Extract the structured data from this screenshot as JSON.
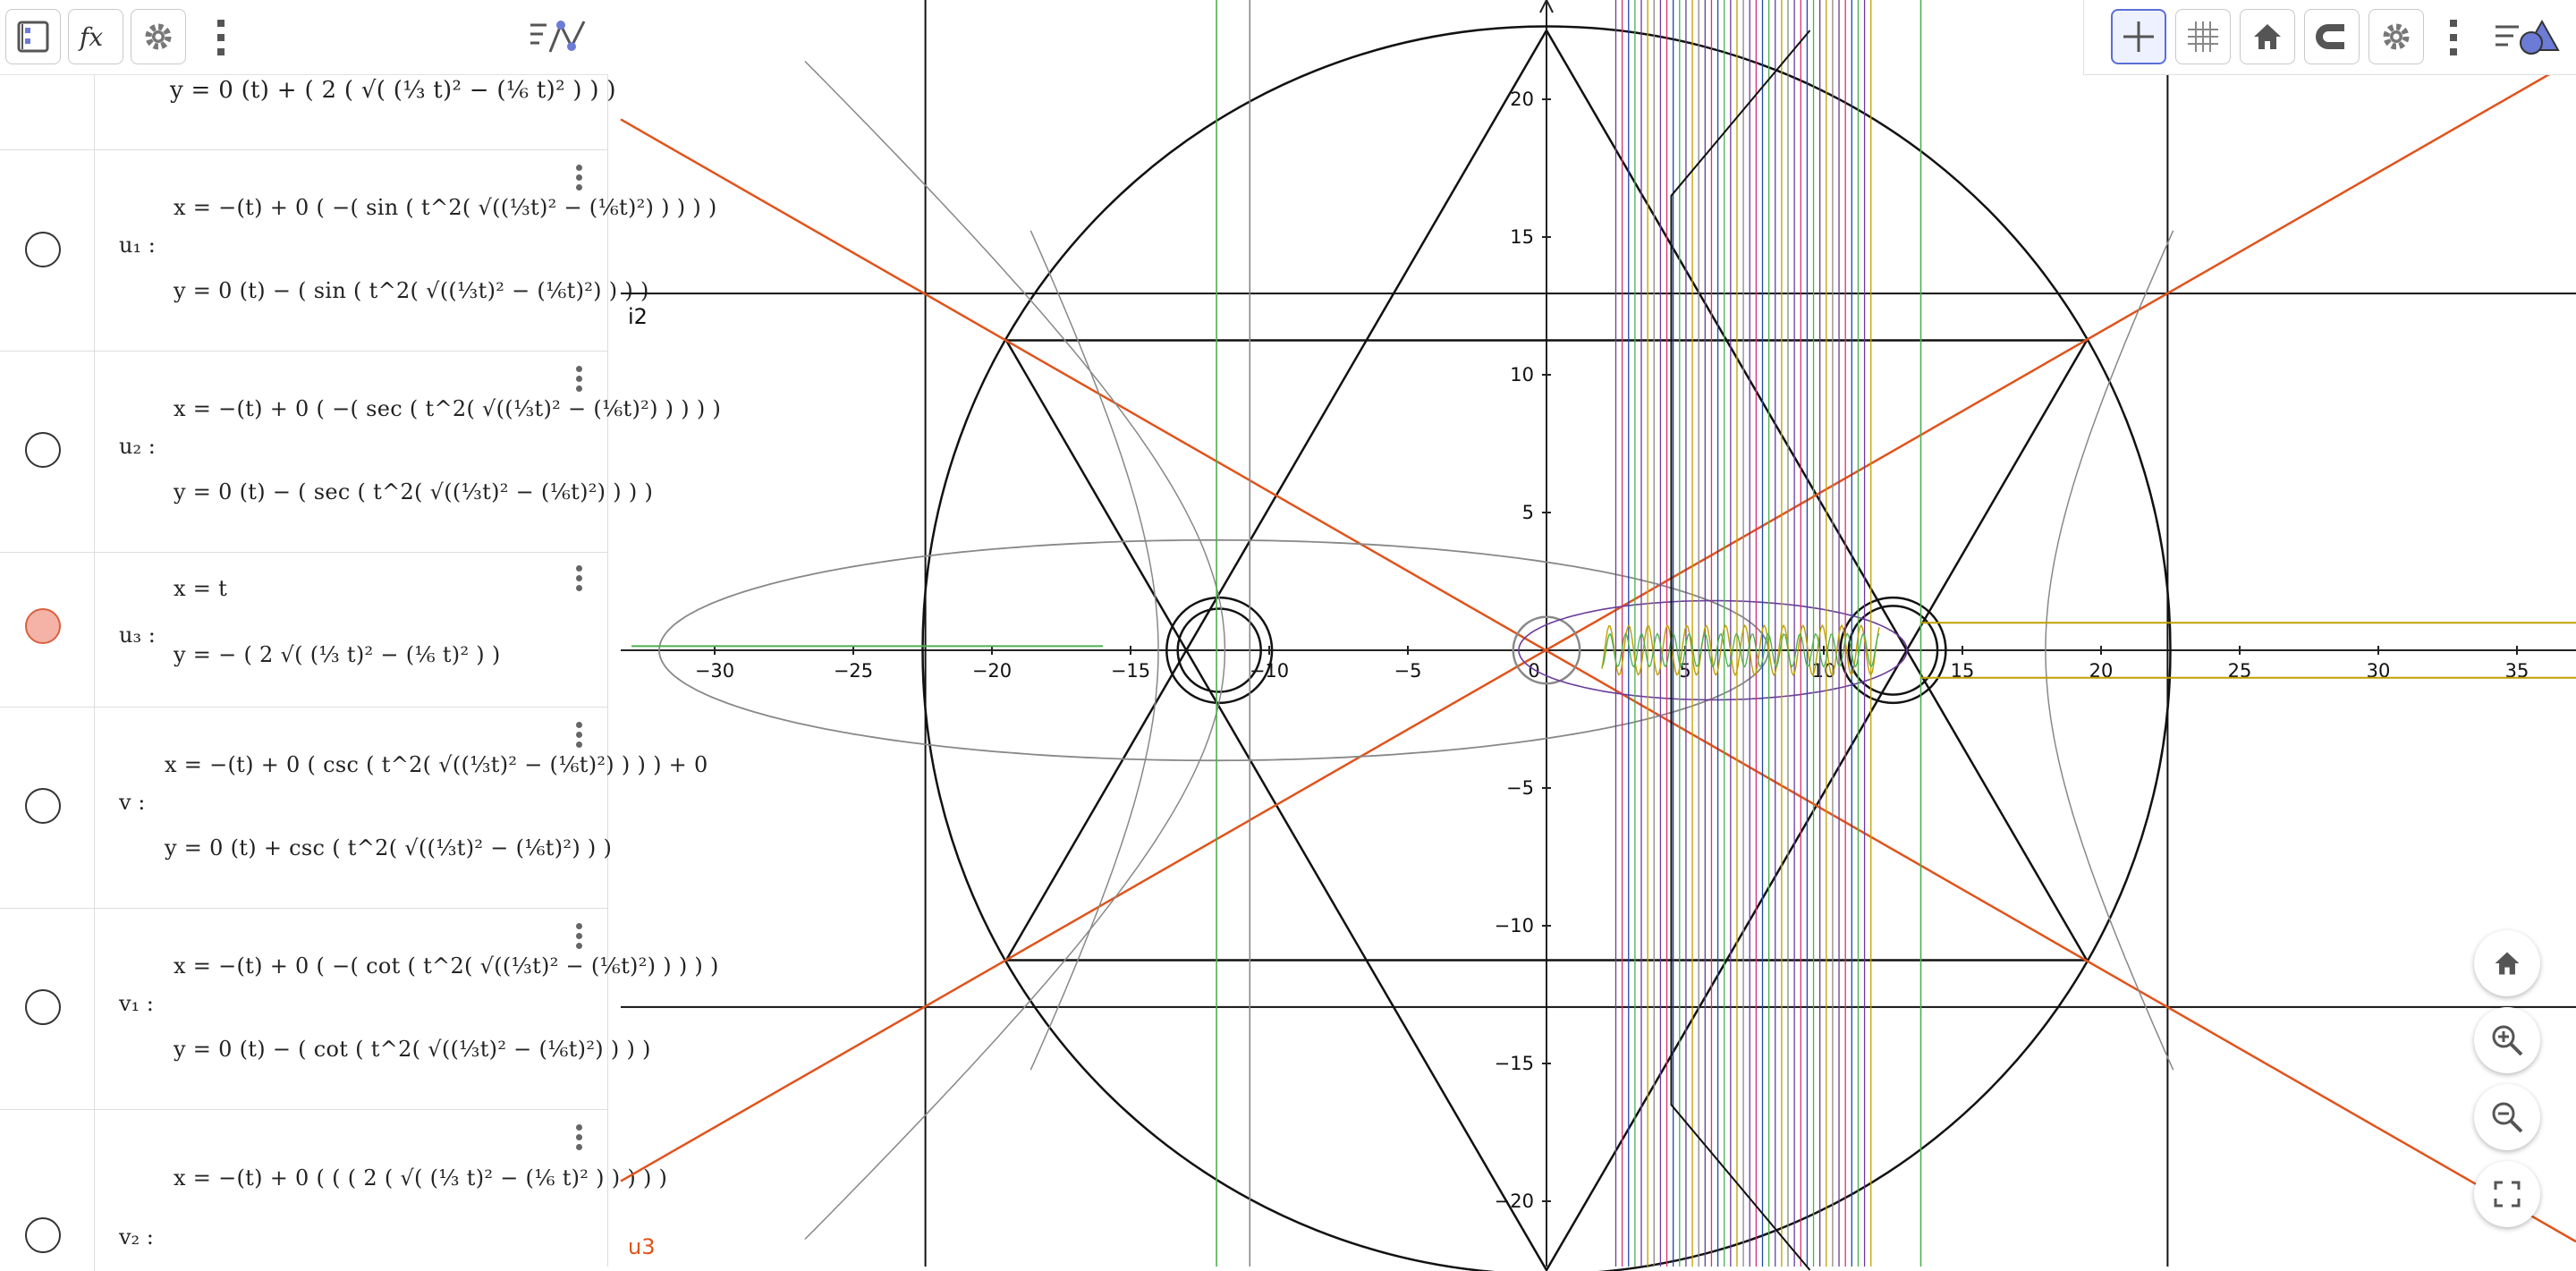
{
  "algebra": {
    "toolbar": {
      "icons": [
        "algebra-view-icon",
        "function-fx-icon",
        "gear-icon",
        "more-vertical-icon",
        "graphics-view-icon"
      ]
    },
    "top_partial_equation": "y = 0 (t) + ( 2 ( √( (⅓ t)² − (⅙ t)² ) ) )",
    "rows": [
      {
        "label": "u₁ :",
        "visible": false,
        "x_eq": "x = −(t) + 0 ( −( sin ( t^2( √((⅓t)² − (⅙t)²) ) ) ) )",
        "y_eq": "y = 0 (t) − ( sin ( t^2( √((⅓t)² − (⅙t)²) ) ) )"
      },
      {
        "label": "u₂ :",
        "visible": false,
        "x_eq": "x = −(t) + 0 ( −( sec ( t^2( √((⅓t)² − (⅙t)²) ) ) ) )",
        "y_eq": "y = 0 (t) − ( sec ( t^2( √((⅓t)² − (⅙t)²) ) ) )"
      },
      {
        "label": "u₃ :",
        "visible": true,
        "x_eq": "x = t",
        "y_eq": "y = − ( 2 √( (⅓ t)² − (⅙ t)² ) )"
      },
      {
        "label": "v :",
        "visible": false,
        "x_eq": "x = −(t) + 0 ( csc ( t^2( √((⅓t)² − (⅙t)²) ) ) ) + 0",
        "y_eq": "y = 0 (t) + csc ( t^2( √((⅓t)² − (⅙t)²) ) )"
      },
      {
        "label": "v₁ :",
        "visible": false,
        "x_eq": "x = −(t) + 0 ( −( cot ( t^2( √((⅓t)² − (⅙t)²) ) ) ) )",
        "y_eq": "y = 0 (t) − ( cot ( t^2( √((⅓t)² − (⅙t)²) ) ) )"
      },
      {
        "label": "v₂ :",
        "visible": false,
        "x_eq": "x = −(t) + 0 ( ( ( 2 ( √( (⅓ t)² − (⅙ t)² ) ) ) ) )",
        "y_eq": ""
      }
    ]
  },
  "graphics": {
    "toolbar": {
      "icons": [
        "axes-toggle-icon",
        "grid-toggle-icon",
        "home-icon",
        "magnet-icon",
        "gear-icon",
        "more-vertical-icon",
        "graphics-style-icon"
      ]
    },
    "nav_buttons": [
      "home-icon",
      "zoom-in-icon",
      "zoom-out-icon",
      "fullscreen-icon"
    ],
    "object_labels": {
      "i2": "i2",
      "u3": "u3"
    },
    "x_ticks": [
      "−30",
      "−25",
      "−20",
      "−15",
      "−10",
      "−5",
      "0",
      "5",
      "10",
      "15",
      "20",
      "25",
      "30",
      "35"
    ],
    "y_ticks": [
      "20",
      "15",
      "10",
      "5",
      "−5",
      "−10",
      "−15",
      "−20"
    ],
    "colors": {
      "orange": "#e0531b",
      "black": "#111111",
      "purple": "#6a3d9a",
      "green": "#4caf50",
      "pink": "#d6336c",
      "blue": "#1f4aa8",
      "gray": "#888888",
      "olive": "#c0a000"
    }
  }
}
